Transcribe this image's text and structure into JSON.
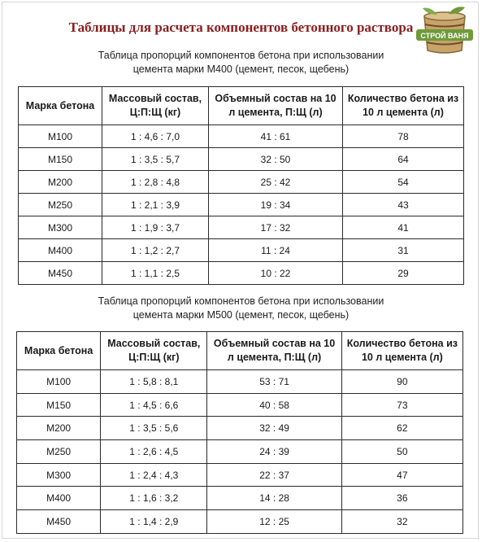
{
  "title": "Таблицы для расчета компонентов бетонного раствора",
  "logo": {
    "icon": "bucket-logo-icon",
    "text": "СТРОЙ ВАНЯ",
    "accent": "#6f9a3a"
  },
  "colors": {
    "title": "#8b1d1d",
    "border": "#2a2a2a"
  },
  "tables": [
    {
      "caption_line1": "Таблица пропорций компонентов бетона при использовании",
      "caption_line2": "цемента марки М400 (цемент, песок, щебень)",
      "headers": [
        "Марка бетона",
        "Массовый состав, Ц:П:Щ (кг)",
        "Объемный состав на 10 л цемента, П:Щ (л)",
        "Количество бетона из 10 л цемента (л)"
      ],
      "rows": [
        [
          "М100",
          "1 : 4,6 : 7,0",
          "41 : 61",
          "78"
        ],
        [
          "М150",
          "1 : 3,5 : 5,7",
          "32 : 50",
          "64"
        ],
        [
          "М200",
          "1 : 2,8 : 4,8",
          "25 : 42",
          "54"
        ],
        [
          "М250",
          "1 : 2,1 : 3,9",
          "19 : 34",
          "43"
        ],
        [
          "М300",
          "1 : 1,9 : 3,7",
          "17 : 32",
          "41"
        ],
        [
          "М400",
          "1 : 1,2 : 2,7",
          "11 : 24",
          "31"
        ],
        [
          "М450",
          "1 : 1,1 : 2,5",
          "10 : 22",
          "29"
        ]
      ]
    },
    {
      "caption_line1": "Таблица пропорций компонентов бетона при использовании",
      "caption_line2": "цемента марки М500 (цемент, песок, щебень)",
      "headers": [
        "Марка бетона",
        "Массовый состав, Ц:П:Щ (кг)",
        "Объемный состав на 10 л цемента, П:Щ (л)",
        "Количество бетона из 10 л цемента (л)"
      ],
      "rows": [
        [
          "М100",
          "1 : 5,8 : 8,1",
          "53 : 71",
          "90"
        ],
        [
          "М150",
          "1 : 4,5 : 6,6",
          "40 : 58",
          "73"
        ],
        [
          "М200",
          "1 : 3,5 : 5,6",
          "32 : 49",
          "62"
        ],
        [
          "М250",
          "1 : 2,6 : 4,5",
          "24 : 39",
          "50"
        ],
        [
          "М300",
          "1 : 2,4 : 4,3",
          "22 : 37",
          "47"
        ],
        [
          "М400",
          "1 : 1,6 : 3,2",
          "14 : 28",
          "36"
        ],
        [
          "М450",
          "1 : 1,4 : 2,9",
          "12 : 25",
          "32"
        ]
      ]
    }
  ]
}
